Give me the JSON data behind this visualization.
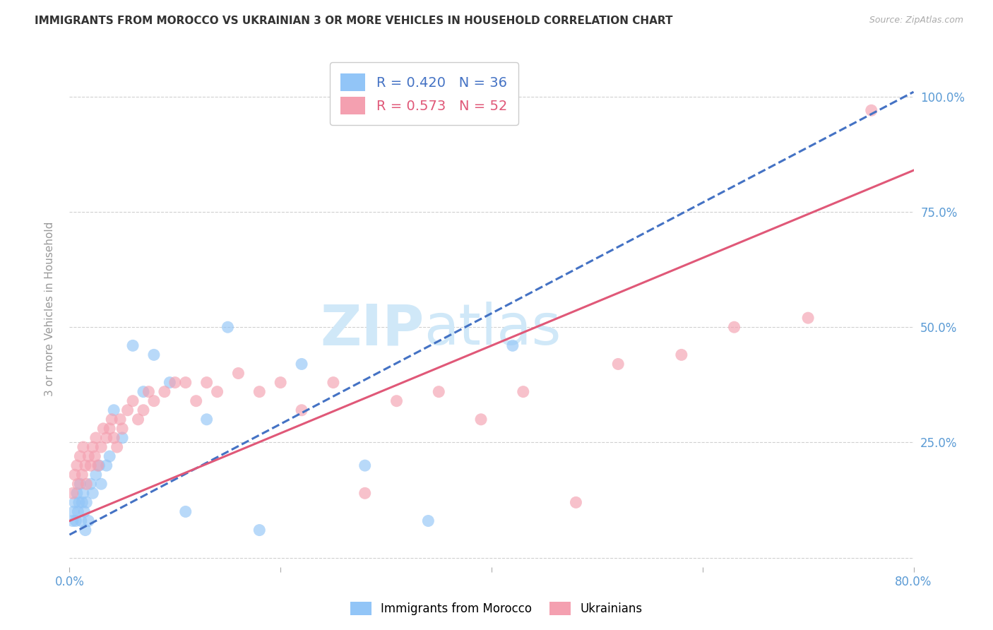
{
  "title": "IMMIGRANTS FROM MOROCCO VS UKRAINIAN 3 OR MORE VEHICLES IN HOUSEHOLD CORRELATION CHART",
  "source": "Source: ZipAtlas.com",
  "ylabel": "3 or more Vehicles in Household",
  "legend_label1": "Immigrants from Morocco",
  "legend_label2": "Ukrainians",
  "R1": 0.42,
  "N1": 36,
  "R2": 0.573,
  "N2": 52,
  "xlim": [
    0.0,
    0.8
  ],
  "ylim": [
    -0.02,
    1.1
  ],
  "color_morocco": "#92c5f7",
  "color_ukraine": "#f4a0b0",
  "color_trendline_morocco": "#4472c4",
  "color_trendline_ukraine": "#e05878",
  "color_axis_labels": "#5b9bd5",
  "watermark_color": "#d0e8f8",
  "grid_color": "#d0d0d0",
  "morocco_intercept": 0.05,
  "morocco_slope": 1.2,
  "ukraine_intercept": 0.08,
  "ukraine_slope": 0.95,
  "morocco_x": [
    0.003,
    0.004,
    0.005,
    0.006,
    0.007,
    0.008,
    0.009,
    0.01,
    0.011,
    0.012,
    0.013,
    0.014,
    0.015,
    0.016,
    0.018,
    0.02,
    0.022,
    0.025,
    0.028,
    0.03,
    0.035,
    0.038,
    0.042,
    0.05,
    0.06,
    0.07,
    0.08,
    0.095,
    0.11,
    0.13,
    0.15,
    0.18,
    0.22,
    0.28,
    0.34,
    0.42
  ],
  "morocco_y": [
    0.08,
    0.1,
    0.12,
    0.08,
    0.14,
    0.1,
    0.12,
    0.16,
    0.08,
    0.12,
    0.14,
    0.1,
    0.06,
    0.12,
    0.08,
    0.16,
    0.14,
    0.18,
    0.2,
    0.16,
    0.2,
    0.22,
    0.32,
    0.26,
    0.46,
    0.36,
    0.44,
    0.38,
    0.1,
    0.3,
    0.5,
    0.06,
    0.42,
    0.2,
    0.08,
    0.46
  ],
  "ukraine_x": [
    0.003,
    0.005,
    0.007,
    0.008,
    0.01,
    0.012,
    0.013,
    0.015,
    0.016,
    0.018,
    0.02,
    0.022,
    0.024,
    0.025,
    0.027,
    0.03,
    0.032,
    0.035,
    0.038,
    0.04,
    0.042,
    0.045,
    0.048,
    0.05,
    0.055,
    0.06,
    0.065,
    0.07,
    0.075,
    0.08,
    0.09,
    0.1,
    0.11,
    0.12,
    0.13,
    0.14,
    0.16,
    0.18,
    0.2,
    0.22,
    0.25,
    0.28,
    0.31,
    0.35,
    0.39,
    0.43,
    0.48,
    0.52,
    0.58,
    0.63,
    0.7,
    0.76
  ],
  "ukraine_y": [
    0.14,
    0.18,
    0.2,
    0.16,
    0.22,
    0.18,
    0.24,
    0.2,
    0.16,
    0.22,
    0.2,
    0.24,
    0.22,
    0.26,
    0.2,
    0.24,
    0.28,
    0.26,
    0.28,
    0.3,
    0.26,
    0.24,
    0.3,
    0.28,
    0.32,
    0.34,
    0.3,
    0.32,
    0.36,
    0.34,
    0.36,
    0.38,
    0.38,
    0.34,
    0.38,
    0.36,
    0.4,
    0.36,
    0.38,
    0.32,
    0.38,
    0.14,
    0.34,
    0.36,
    0.3,
    0.36,
    0.12,
    0.42,
    0.44,
    0.5,
    0.52,
    0.97
  ]
}
